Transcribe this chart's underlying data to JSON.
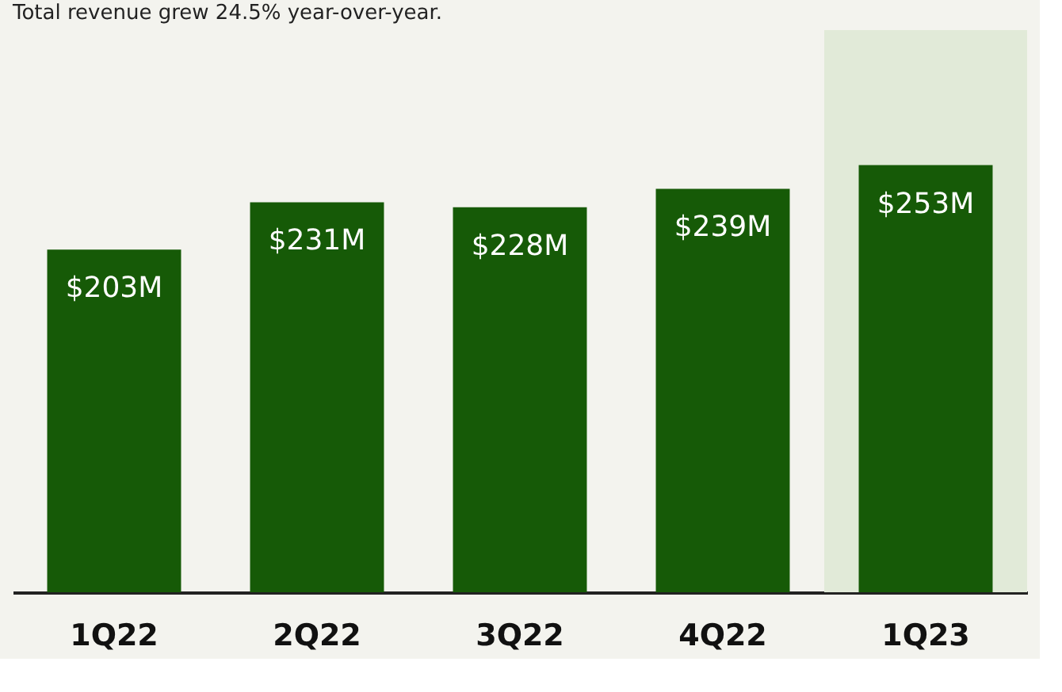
{
  "chart_data": {
    "type": "bar",
    "subtitle": "Total revenue grew 24.5% year-over-year.",
    "categories": [
      "1Q22",
      "2Q22",
      "3Q22",
      "4Q22",
      "1Q23"
    ],
    "values": [
      203,
      231,
      228,
      239,
      253
    ],
    "value_labels": [
      "$203M",
      "$231M",
      "$228M",
      "$239M",
      "$253M"
    ],
    "color": "#165a07",
    "ylim": [
      0,
      333
    ],
    "bands": [
      {
        "axis": "x",
        "from": "1Q23",
        "to": "1Q23",
        "color": "#e1ead8"
      }
    ],
    "grid": false
  }
}
